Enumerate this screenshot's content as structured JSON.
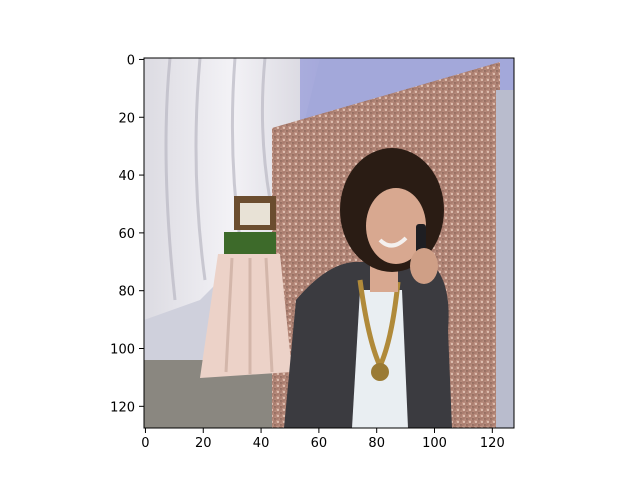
{
  "chart_data": {
    "type": "image",
    "title": "",
    "xlabel": "",
    "ylabel": "",
    "image_width": 128,
    "image_height": 128,
    "xlim": [
      -0.5,
      127.5
    ],
    "ylim": [
      127.5,
      -0.5
    ],
    "x_ticks": [
      0,
      20,
      40,
      60,
      80,
      100,
      120
    ],
    "y_ticks": [
      0,
      20,
      40,
      60,
      80,
      100,
      120
    ],
    "grid": false,
    "image_content": {
      "subject": "smiling person with curly hair talking on a phone",
      "background": "rose-gold sequin backdrop and white draped curtains",
      "props": "table with draped pink tablecloth and photo frames"
    },
    "colors": {
      "curtain": "#e6e4ec",
      "sequin": "#b88a7a",
      "tablecloth": "#ecd2c8",
      "floor": "#8a8780",
      "jacket": "#3b3b40",
      "shirt": "#e9eef2",
      "hair": "#2a1c14",
      "skin": "#d8a890"
    }
  }
}
